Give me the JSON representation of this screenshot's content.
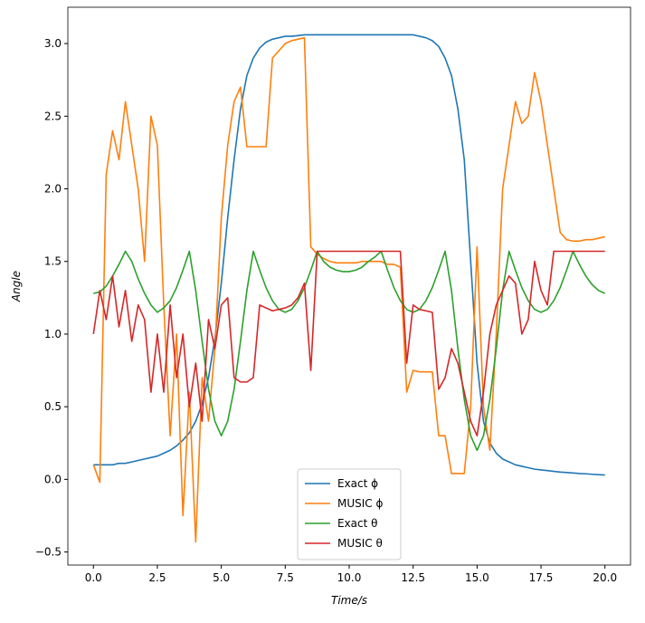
{
  "chart_data": {
    "type": "line",
    "xlabel": "Time/s",
    "ylabel": "Angle",
    "x": [
      0,
      0.25,
      0.5,
      0.75,
      1,
      1.25,
      1.5,
      1.75,
      2,
      2.25,
      2.5,
      2.75,
      3,
      3.25,
      3.5,
      3.75,
      4,
      4.25,
      4.5,
      4.75,
      5,
      5.25,
      5.5,
      5.75,
      6,
      6.25,
      6.5,
      6.75,
      7,
      7.25,
      7.5,
      7.75,
      8,
      8.25,
      8.5,
      8.75,
      9,
      9.25,
      9.5,
      9.75,
      10,
      10.25,
      10.5,
      10.75,
      11,
      11.25,
      11.5,
      11.75,
      12,
      12.25,
      12.5,
      12.75,
      13,
      13.25,
      13.5,
      13.75,
      14,
      14.25,
      14.5,
      14.75,
      15,
      15.25,
      15.5,
      15.75,
      16,
      16.25,
      16.5,
      16.75,
      17,
      17.25,
      17.5,
      17.75,
      18,
      18.25,
      18.5,
      18.75,
      19,
      19.25,
      19.5,
      19.75,
      20
    ],
    "series": [
      {
        "name": "Exact ϕ",
        "color": "#1f77b4",
        "values": [
          0.1,
          0.1,
          0.1,
          0.1,
          0.11,
          0.11,
          0.12,
          0.13,
          0.14,
          0.15,
          0.16,
          0.18,
          0.2,
          0.23,
          0.27,
          0.32,
          0.4,
          0.52,
          0.7,
          0.97,
          1.35,
          1.8,
          2.2,
          2.55,
          2.78,
          2.9,
          2.97,
          3.01,
          3.03,
          3.04,
          3.05,
          3.05,
          3.055,
          3.06,
          3.06,
          3.06,
          3.06,
          3.06,
          3.06,
          3.06,
          3.06,
          3.06,
          3.06,
          3.06,
          3.06,
          3.06,
          3.06,
          3.06,
          3.06,
          3.06,
          3.06,
          3.05,
          3.04,
          3.02,
          2.98,
          2.9,
          2.78,
          2.55,
          2.2,
          1.5,
          0.8,
          0.4,
          0.25,
          0.18,
          0.14,
          0.12,
          0.1,
          0.09,
          0.08,
          0.07,
          0.065,
          0.06,
          0.055,
          0.05,
          0.047,
          0.044,
          0.04,
          0.038,
          0.035,
          0.032,
          0.03
        ]
      },
      {
        "name": "MUSIC ϕ",
        "color": "#ff7f0e",
        "values": [
          0.1,
          -0.02,
          2.1,
          2.4,
          2.2,
          2.6,
          2.3,
          2.0,
          1.5,
          2.5,
          2.3,
          1.2,
          0.3,
          1.0,
          -0.25,
          0.6,
          -0.43,
          0.7,
          0.4,
          0.9,
          1.8,
          2.3,
          2.6,
          2.7,
          2.29,
          2.29,
          2.29,
          2.29,
          2.9,
          2.95,
          3.0,
          3.02,
          3.03,
          3.04,
          1.6,
          1.55,
          1.52,
          1.5,
          1.49,
          1.49,
          1.49,
          1.49,
          1.5,
          1.5,
          1.5,
          1.5,
          1.48,
          1.48,
          1.46,
          0.6,
          0.75,
          0.74,
          0.74,
          0.74,
          0.3,
          0.3,
          0.04,
          0.04,
          0.04,
          0.5,
          1.6,
          0.5,
          0.2,
          1.0,
          2.0,
          2.3,
          2.6,
          2.45,
          2.5,
          2.8,
          2.6,
          2.3,
          2.0,
          1.7,
          1.65,
          1.64,
          1.64,
          1.65,
          1.65,
          1.66,
          1.67
        ]
      },
      {
        "name": "Exact θ",
        "color": "#2ca02c",
        "values": [
          1.28,
          1.29,
          1.33,
          1.4,
          1.48,
          1.57,
          1.5,
          1.38,
          1.28,
          1.2,
          1.15,
          1.18,
          1.23,
          1.32,
          1.44,
          1.57,
          1.3,
          0.95,
          0.62,
          0.4,
          0.3,
          0.4,
          0.62,
          0.95,
          1.3,
          1.57,
          1.44,
          1.32,
          1.23,
          1.17,
          1.15,
          1.17,
          1.23,
          1.32,
          1.44,
          1.57,
          1.5,
          1.46,
          1.44,
          1.43,
          1.43,
          1.44,
          1.46,
          1.5,
          1.53,
          1.57,
          1.44,
          1.32,
          1.23,
          1.17,
          1.15,
          1.17,
          1.23,
          1.32,
          1.44,
          1.57,
          1.3,
          0.9,
          0.55,
          0.3,
          0.2,
          0.3,
          0.55,
          0.9,
          1.3,
          1.57,
          1.44,
          1.32,
          1.23,
          1.17,
          1.15,
          1.17,
          1.23,
          1.32,
          1.44,
          1.57,
          1.48,
          1.4,
          1.34,
          1.3,
          1.28
        ]
      },
      {
        "name": "MUSIC θ",
        "color": "#d62728",
        "values": [
          1.0,
          1.3,
          1.1,
          1.4,
          1.05,
          1.3,
          0.95,
          1.2,
          1.1,
          0.6,
          1.0,
          0.6,
          1.2,
          0.7,
          1.0,
          0.5,
          0.8,
          0.4,
          1.1,
          0.9,
          1.2,
          1.25,
          0.7,
          0.67,
          0.67,
          0.7,
          1.2,
          1.18,
          1.16,
          1.17,
          1.18,
          1.2,
          1.25,
          1.35,
          0.75,
          1.57,
          1.57,
          1.57,
          1.57,
          1.57,
          1.57,
          1.57,
          1.57,
          1.57,
          1.57,
          1.57,
          1.57,
          1.57,
          1.57,
          0.8,
          1.2,
          1.17,
          1.16,
          1.15,
          0.62,
          0.7,
          0.9,
          0.8,
          0.6,
          0.4,
          0.3,
          0.6,
          1.0,
          1.2,
          1.3,
          1.4,
          1.35,
          1.0,
          1.1,
          1.5,
          1.3,
          1.2,
          1.57,
          1.57,
          1.57,
          1.57,
          1.57,
          1.57,
          1.57,
          1.57,
          1.57
        ]
      }
    ],
    "xlim": [
      -1.0,
      21.0
    ],
    "ylim": [
      -0.59,
      3.25
    ],
    "xticks": [
      {
        "value": 0,
        "label": "0.0"
      },
      {
        "value": 2.5,
        "label": "2.5"
      },
      {
        "value": 5,
        "label": "5.0"
      },
      {
        "value": 7.5,
        "label": "7.5"
      },
      {
        "value": 10,
        "label": "10.0"
      },
      {
        "value": 12.5,
        "label": "12.5"
      },
      {
        "value": 15,
        "label": "15.0"
      },
      {
        "value": 17.5,
        "label": "17.5"
      },
      {
        "value": 20,
        "label": "20.0"
      }
    ],
    "yticks": [
      {
        "value": -0.5,
        "label": "−0.5"
      },
      {
        "value": 0,
        "label": "0.0"
      },
      {
        "value": 0.5,
        "label": "0.5"
      },
      {
        "value": 1,
        "label": "1.0"
      },
      {
        "value": 1.5,
        "label": "1.5"
      },
      {
        "value": 2,
        "label": "2.0"
      },
      {
        "value": 2.5,
        "label": "2.5"
      },
      {
        "value": 3,
        "label": "3.0"
      }
    ],
    "legend": "lower center",
    "grid": false
  }
}
